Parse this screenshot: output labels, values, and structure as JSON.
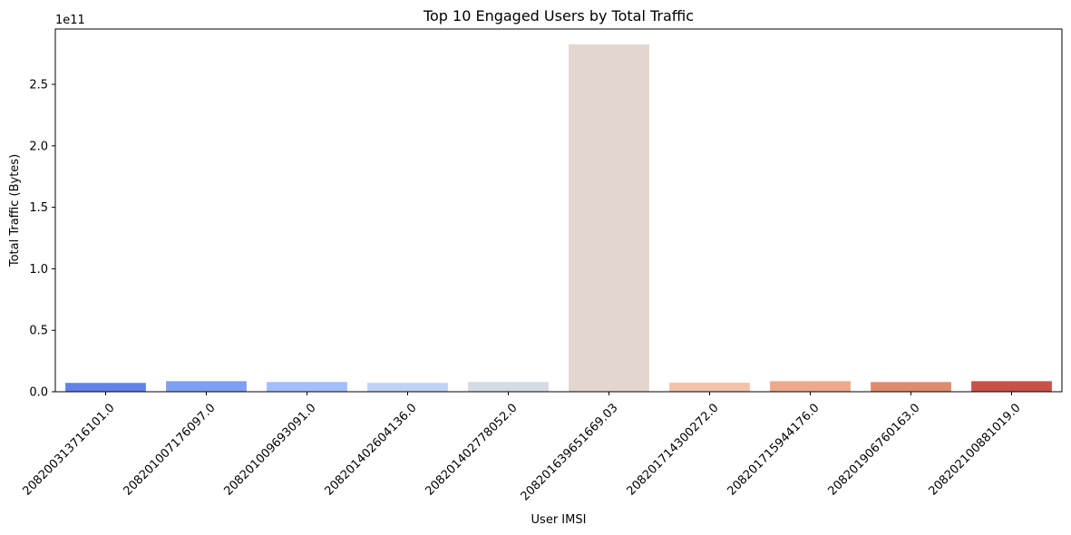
{
  "chart_data": {
    "type": "bar",
    "title": "Top 10 Engaged Users by Total Traffic",
    "xlabel": "User IMSI",
    "ylabel": "Total Traffic (Bytes)",
    "offset_text": "1e11",
    "categories": [
      "208200313716101.0",
      "208201007176097.0",
      "208201009693091.0",
      "208201402604136.0",
      "208201402778052.0",
      "208201639651669.03",
      "208201714300272.0",
      "208201715944176.0",
      "208201906760163.0",
      "208202100881019.0"
    ],
    "values": [
      7200000000.0,
      8600000000.0,
      7900000000.0,
      7200000000.0,
      7900000000.0,
      282500000000.0,
      7300000000.0,
      8600000000.0,
      7900000000.0,
      8600000000.0
    ],
    "colors": [
      "#6382e9",
      "#7f9ff2",
      "#a1bffb",
      "#c0d3f5",
      "#d5dbe5",
      "#e2d6cf",
      "#f2c2ab",
      "#eda98b",
      "#e08a6e",
      "#c9514a"
    ],
    "ylim": [
      0,
      295000000000.0
    ],
    "yticks": [
      0,
      50000000000.0,
      100000000000.0,
      150000000000.0,
      200000000000.0,
      250000000000.0
    ],
    "ytick_labels": [
      "0.0",
      "0.5",
      "1.0",
      "1.5",
      "2.0",
      "2.5"
    ],
    "grid": false,
    "legend": "none"
  }
}
